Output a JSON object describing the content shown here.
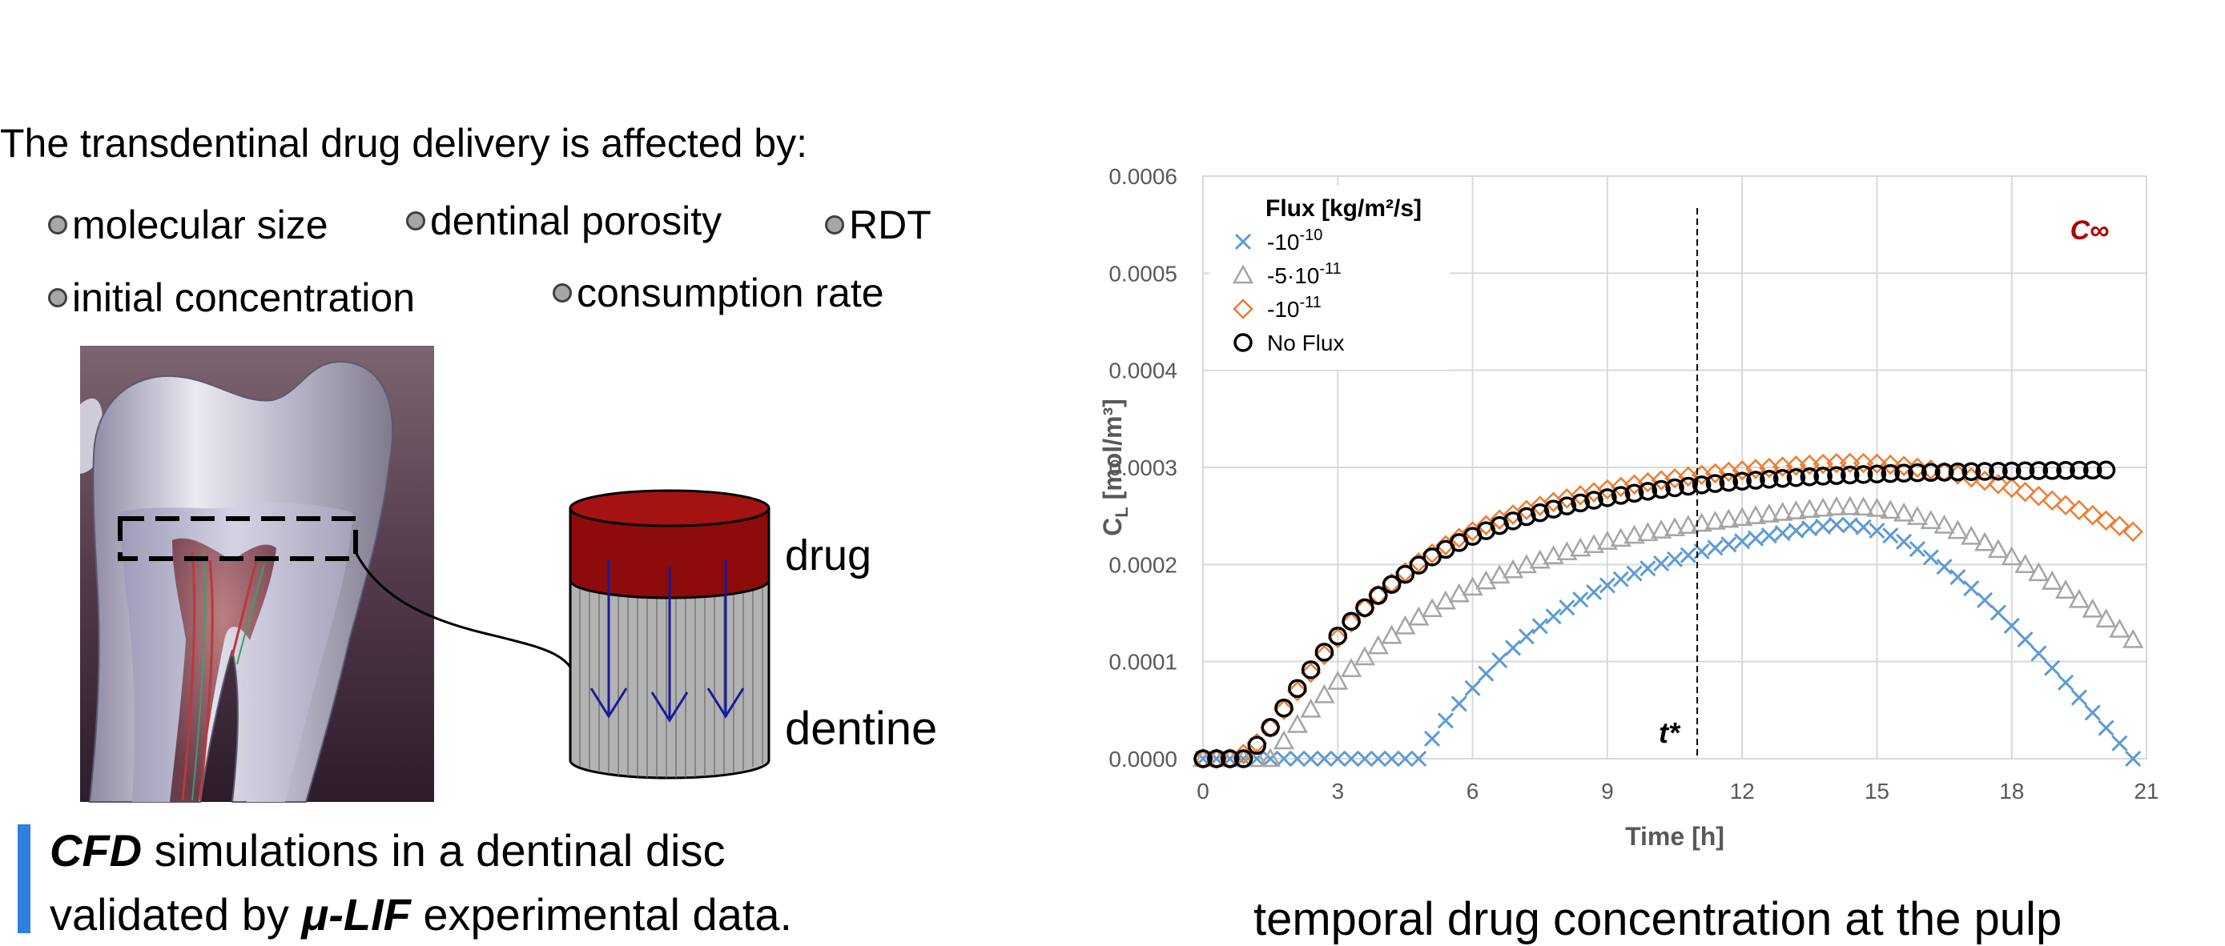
{
  "intro": {
    "text": "The transdentinal drug delivery is affected by:"
  },
  "factors": [
    "molecular size",
    "dentinal porosity",
    "RDT",
    "initial concentration",
    "consumption rate"
  ],
  "diagram": {
    "drug_label": "drug",
    "dentine_label": "dentine"
  },
  "cfd": {
    "line1_bold": "CFD",
    "line1_rest": " simulations in a dentinal disc",
    "line2_start": "validated by ",
    "line2_bold": "μ-LIF",
    "line2_end": " experimental data."
  },
  "caption": "temporal drug concentration at the pulp",
  "chart_data": {
    "type": "scatter",
    "title": "",
    "xlabel": "Time [h]",
    "ylabel_main": "C",
    "ylabel_sub": "L",
    "ylabel_units": " [mol/m³]",
    "xlim": [
      0,
      21
    ],
    "ylim": [
      0,
      0.0006
    ],
    "xticks": [
      "0",
      "3",
      "6",
      "9",
      "12",
      "15",
      "18",
      "21"
    ],
    "xtick_values": [
      0,
      3,
      6,
      9,
      12,
      15,
      18,
      21
    ],
    "yticks": [
      "0.0000",
      "0.0001",
      "0.0002",
      "0.0003",
      "0.0004",
      "0.0005",
      "0.0006"
    ],
    "ytick_values": [
      0,
      0.0001,
      0.0002,
      0.0003,
      0.0004,
      0.0005,
      0.0006
    ],
    "legend_title": "Flux [kg/m²/s]",
    "legend_position": "top-left",
    "vline": {
      "x": 11,
      "label": "t*"
    },
    "annotation": {
      "text": "C∞",
      "x": 19.3,
      "y": 0.000535
    },
    "sampling": {
      "x_start": 0,
      "x_step": 0.3
    },
    "series": [
      {
        "name": "-10⁻¹⁰",
        "name_base": "-10",
        "name_exp": "-10",
        "marker": "x",
        "color": "#5b9bd5",
        "values": [
          0,
          0,
          0,
          0,
          0,
          0,
          0,
          0,
          0,
          0,
          0,
          0,
          0,
          0,
          0,
          0,
          0,
          2.07e-05,
          3.93e-05,
          5.66e-05,
          7.27e-05,
          8.76e-05,
          0.0001014,
          0.0001141,
          0.0001258,
          0.0001366,
          0.0001465,
          0.0001556,
          0.0001639,
          0.0001715,
          0.0001785,
          0.0001849,
          0.0001907,
          0.000196,
          0.000201,
          0.0002054,
          0.0002096,
          0.0002135,
          0.0002172,
          0.0002206,
          0.0002239,
          0.0002269,
          0.0002298,
          0.0002324,
          0.0002349,
          0.0002372,
          0.0002391,
          0.0002409,
          0.0002405,
          0.0002384,
          0.0002348,
          0.0002298,
          0.0002235,
          0.0002159,
          0.0002073,
          0.0001976,
          0.000187,
          0.0001755,
          0.0001633,
          0.0001504,
          0.0001369,
          0.0001229,
          0.0001084,
          9.35e-05,
          7.84e-05,
          6.3e-05,
          4.74e-05,
          3.17e-05,
          1.59e-05,
          0
        ]
      },
      {
        "name": "-5·10⁻¹¹",
        "name_base": "-5·10",
        "name_exp": "-11",
        "marker": "triangle",
        "color": "#a5a5a5",
        "values": [
          0,
          0,
          0,
          0,
          0,
          0,
          1.81e-05,
          3.5e-05,
          5.08e-05,
          6.56e-05,
          7.95e-05,
          9.25e-05,
          0.0001047,
          0.0001161,
          0.0001267,
          0.0001365,
          0.0001457,
          0.0001543,
          0.0001622,
          0.0001696,
          0.0001765,
          0.0001829,
          0.0001888,
          0.0001943,
          0.0001995,
          0.0002042,
          0.0002087,
          0.0002128,
          0.0002167,
          0.0002203,
          0.0002237,
          0.0002268,
          0.0002298,
          0.0002325,
          0.0002352,
          0.0002376,
          0.00024,
          0.0002422,
          0.0002443,
          0.0002463,
          0.0002482,
          0.00025,
          0.0002517,
          0.0002534,
          0.000255,
          0.0002565,
          0.0002578,
          0.0002591,
          0.0002594,
          0.0002589,
          0.0002576,
          0.0002555,
          0.0002527,
          0.0002492,
          0.000245,
          0.0002402,
          0.0002348,
          0.0002288,
          0.0002223,
          0.0002152,
          0.0002077,
          0.0001997,
          0.0001913,
          0.0001825,
          0.0001733,
          0.0001637,
          0.0001538,
          0.0001436,
          0.0001331,
          0.0001224
        ]
      },
      {
        "name": "-10⁻¹¹",
        "name_base": "-10",
        "name_exp": "-11",
        "marker": "diamond",
        "color": "#ed7d31",
        "values": [
          0,
          0,
          0,
          4.8e-06,
          1.61e-05,
          3.2e-05,
          5.03e-05,
          6.95e-05,
          8.85e-05,
          0.0001068,
          0.0001241,
          0.0001402,
          0.000155,
          0.0001685,
          0.0001808,
          0.000192,
          0.0002022,
          0.0002114,
          0.0002198,
          0.0002274,
          0.0002343,
          0.0002405,
          0.0002462,
          0.0002514,
          0.0002561,
          0.0002604,
          0.0002644,
          0.000268,
          0.0002713,
          0.0002744,
          0.0002773,
          0.0002799,
          0.0002824,
          0.0002846,
          0.0002867,
          0.0002887,
          0.0002906,
          0.0002923,
          0.0002939,
          0.0002955,
          0.0002969,
          0.0002983,
          0.0002995,
          0.0003007,
          0.0003018,
          0.0003028,
          0.0003036,
          0.0003044,
          0.0003046,
          0.0003044,
          0.0003038,
          0.0003028,
          0.0003014,
          0.0002997,
          0.0002977,
          0.0002953,
          0.0002926,
          0.0002896,
          0.0002863,
          0.0002828,
          0.0002789,
          0.0002748,
          0.0002705,
          0.0002659,
          0.0002611,
          0.000256,
          0.0002508,
          0.0002453,
          0.0002397,
          0.0002338
        ]
      },
      {
        "name": "No Flux",
        "name_base": "No Flux",
        "name_exp": "",
        "marker": "circle",
        "color": "#000000",
        "values": [
          0,
          0,
          0,
          0,
          1.38e-05,
          3.22e-05,
          5.22e-05,
          7.23e-05,
          9.16e-05,
          0.0001097,
          0.0001264,
          0.0001416,
          0.0001555,
          0.0001681,
          0.0001795,
          0.0001899,
          0.0001993,
          0.0002078,
          0.0002156,
          0.0002226,
          0.000229,
          0.0002348,
          0.0002401,
          0.0002449,
          0.0002493,
          0.0002533,
          0.000257,
          0.0002603,
          0.0002634,
          0.0002662,
          0.0002688,
          0.0002712,
          0.0002734,
          0.0002754,
          0.0002773,
          0.000279,
          0.0002806,
          0.000282,
          0.0002834,
          0.0002846,
          0.0002858,
          0.0002868,
          0.0002878,
          0.0002887,
          0.0002895,
          0.0002903,
          0.000291,
          0.0002916,
          0.0002922,
          0.0002927,
          0.0002932,
          0.0002937,
          0.0002941,
          0.0002945,
          0.0002948,
          0.0002951,
          0.0002954,
          0.0002957,
          0.0002959,
          0.0002961,
          0.0002963,
          0.0002965,
          0.0002967,
          0.0002968,
          0.0002969,
          0.0002971,
          0.0002972,
          0.0002973
        ]
      }
    ]
  }
}
